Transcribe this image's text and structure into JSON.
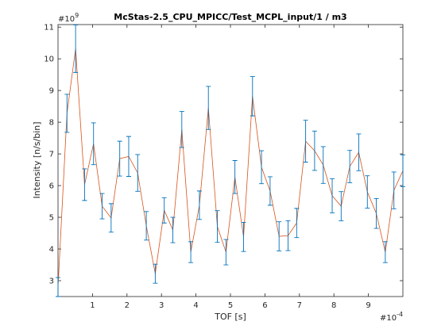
{
  "chart_data": {
    "type": "errorbar",
    "title": "McStas-2.5_CPU_MPICC/Test_MCPL_input/1 / m3",
    "xlabel": "TOF [s]",
    "ylabel": "Intensity [n/s/bin]",
    "x_exponent": {
      "base": "#10",
      "power": "-4"
    },
    "y_exponent": {
      "base": "#10",
      "power": "9"
    },
    "x": [
      0,
      0.26,
      0.51,
      0.77,
      1.03,
      1.28,
      1.54,
      1.79,
      2.05,
      2.31,
      2.56,
      2.82,
      3.08,
      3.33,
      3.59,
      3.85,
      4.1,
      4.36,
      4.62,
      4.87,
      5.13,
      5.38,
      5.64,
      5.9,
      6.15,
      6.41,
      6.67,
      6.92,
      7.18,
      7.44,
      7.69,
      7.95,
      8.21,
      8.46,
      8.72,
      8.97,
      9.23,
      9.49,
      9.74,
      10
    ],
    "values": [
      2.8,
      8.28,
      10.32,
      6.03,
      7.32,
      5.35,
      4.98,
      6.85,
      6.92,
      6.4,
      4.73,
      3.22,
      5.22,
      4.6,
      7.77,
      3.9,
      5.38,
      8.45,
      4.71,
      3.9,
      6.27,
      4.38,
      8.82,
      6.58,
      5.83,
      4.4,
      4.42,
      4.82,
      7.4,
      7.1,
      6.65,
      5.68,
      5.35,
      6.6,
      7.05,
      5.8,
      5.12,
      3.9,
      5.85,
      6.47
    ],
    "errors": [
      0.3,
      0.6,
      0.75,
      0.5,
      0.66,
      0.4,
      0.45,
      0.55,
      0.63,
      0.58,
      0.45,
      0.3,
      0.4,
      0.4,
      0.57,
      0.33,
      0.45,
      0.68,
      0.5,
      0.4,
      0.52,
      0.46,
      0.62,
      0.52,
      0.45,
      0.46,
      0.47,
      0.46,
      0.66,
      0.62,
      0.58,
      0.54,
      0.46,
      0.51,
      0.58,
      0.51,
      0.47,
      0.33,
      0.58,
      0.5
    ],
    "line_color": "#d95319",
    "error_color": "#0072bd",
    "xlim": [
      0,
      10
    ],
    "ylim": [
      2.5,
      11.08
    ],
    "xticks": [
      1,
      2,
      3,
      4,
      5,
      6,
      7,
      8,
      9
    ],
    "yticks": [
      3,
      4,
      5,
      6,
      7,
      8,
      9,
      10,
      11
    ]
  }
}
